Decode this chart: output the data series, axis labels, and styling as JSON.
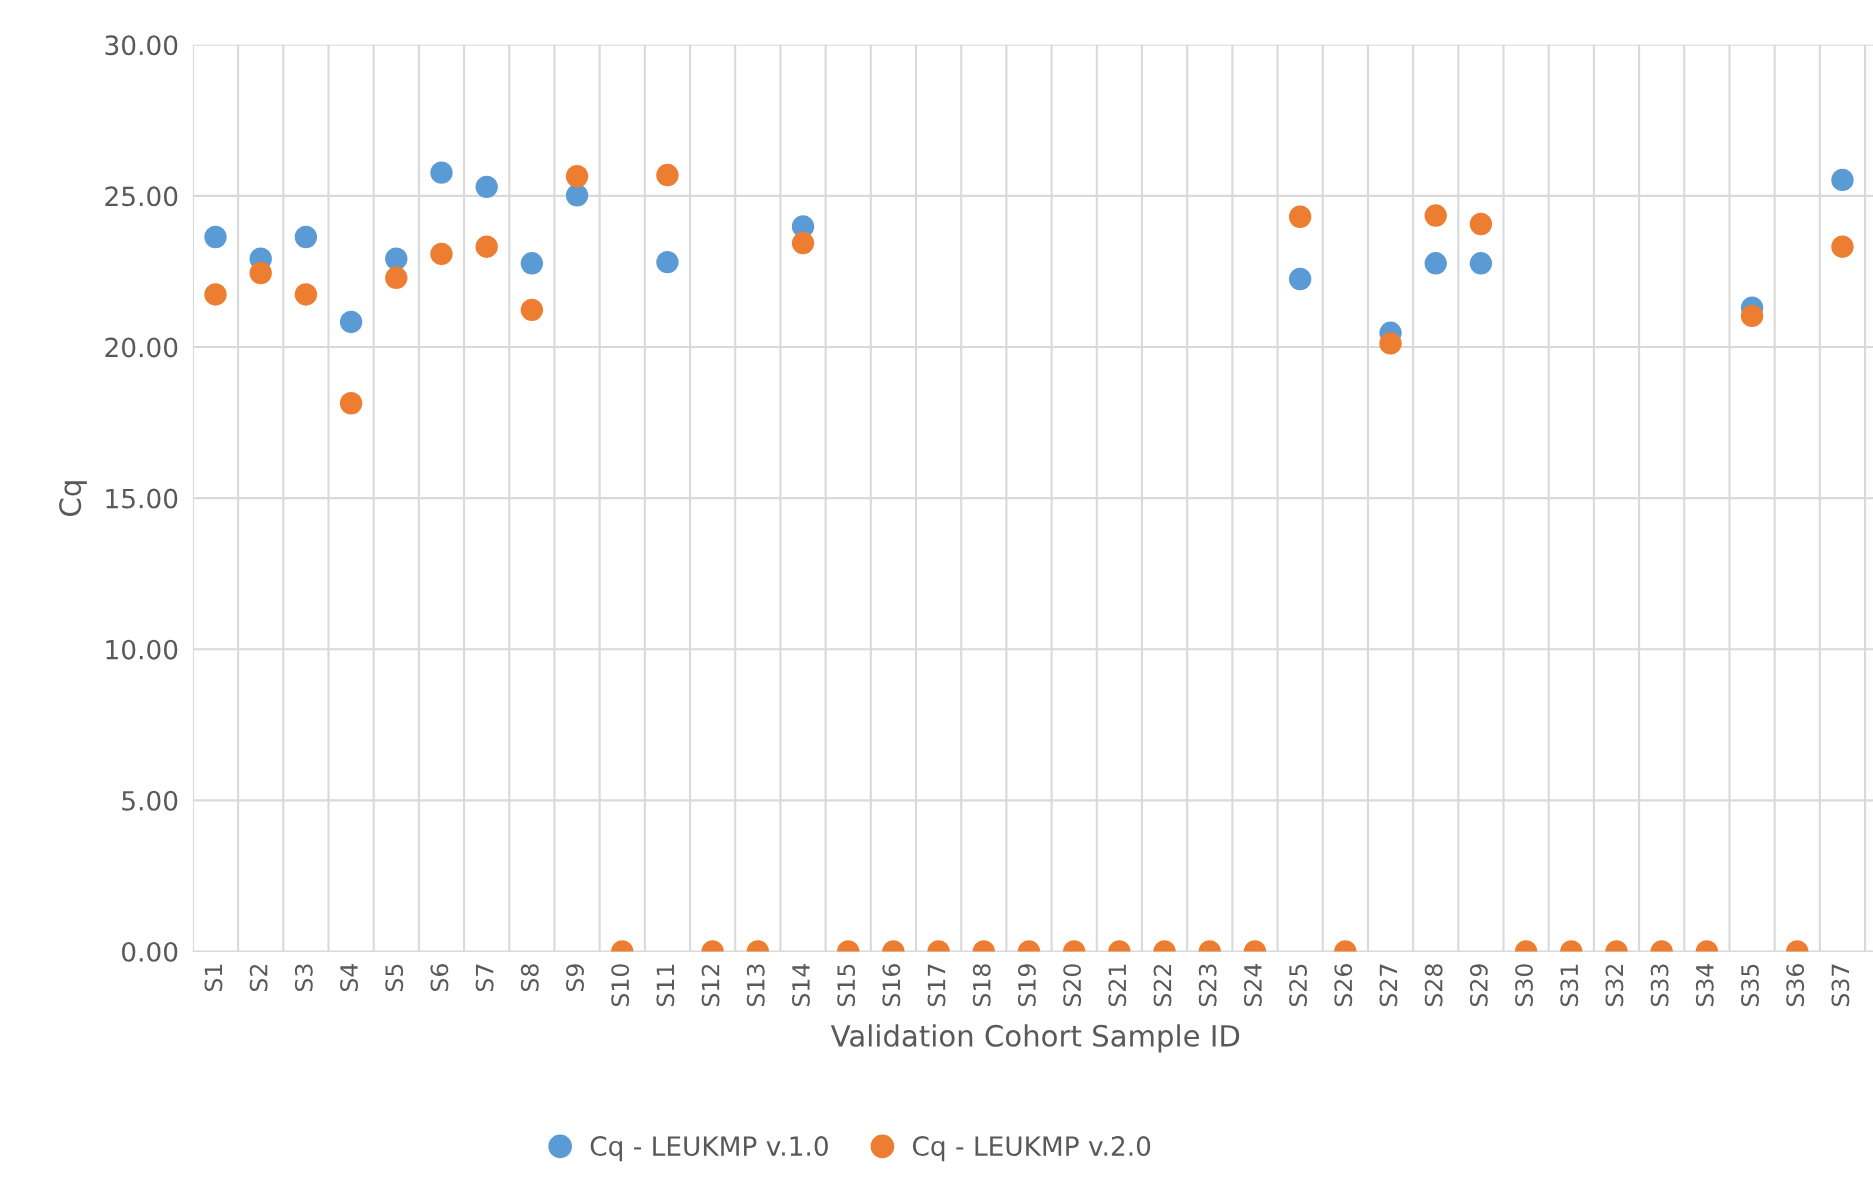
{
  "chart_data": {
    "type": "scatter",
    "xlabel": "Validation Cohort Sample ID",
    "ylabel": "Cq",
    "categories": [
      "S1",
      "S2",
      "S3",
      "S4",
      "S5",
      "S6",
      "S7",
      "S8",
      "S9",
      "S10",
      "S11",
      "S12",
      "S13",
      "S14",
      "S15",
      "S16",
      "S17",
      "S18",
      "S19",
      "S20",
      "S21",
      "S22",
      "S23",
      "S24",
      "S25",
      "S26",
      "S27",
      "S28",
      "S29",
      "S30",
      "S31",
      "S32",
      "S33",
      "S34",
      "S35",
      "S36",
      "S37"
    ],
    "series": [
      {
        "name": "Cq - LEUKMP v.1.0",
        "color": "#5b9bd5",
        "values": [
          23.64,
          22.92,
          23.64,
          20.83,
          22.92,
          25.77,
          25.3,
          22.77,
          25.02,
          null,
          22.81,
          null,
          null,
          23.99,
          null,
          null,
          null,
          null,
          null,
          null,
          null,
          null,
          null,
          null,
          22.25,
          null,
          20.47,
          22.77,
          22.77,
          null,
          null,
          null,
          null,
          null,
          21.3,
          null,
          25.53
        ]
      },
      {
        "name": "Cq - LEUKMP v.2.0",
        "color": "#ed7d31",
        "values": [
          21.74,
          22.45,
          21.74,
          18.14,
          22.29,
          23.08,
          23.32,
          21.23,
          25.65,
          0,
          25.69,
          0,
          0,
          23.44,
          0,
          0,
          0,
          0,
          0,
          0,
          0,
          0,
          0,
          0,
          24.31,
          0,
          20.12,
          24.35,
          24.07,
          0,
          0,
          0,
          0,
          0,
          21.03,
          0,
          23.32
        ]
      }
    ],
    "ylim": [
      0,
      30
    ],
    "yticks": [
      {
        "value": 0,
        "label": "0.00"
      },
      {
        "value": 5,
        "label": "5.00"
      },
      {
        "value": 10,
        "label": "10.00"
      },
      {
        "value": 15,
        "label": "15.00"
      },
      {
        "value": 20,
        "label": "20.00"
      },
      {
        "value": 25,
        "label": "25.00"
      },
      {
        "value": 30,
        "label": "30.00"
      }
    ],
    "grid": true,
    "legend": "bottom",
    "marker": "circle"
  }
}
